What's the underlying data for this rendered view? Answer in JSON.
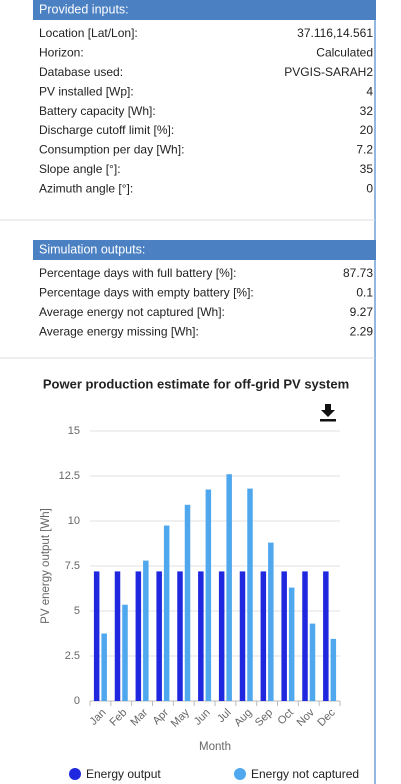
{
  "inputs": {
    "title": "Provided inputs:",
    "rows": [
      [
        "Location [Lat/Lon]:",
        "37.116,14.561"
      ],
      [
        "Horizon:",
        "Calculated"
      ],
      [
        "Database used:",
        "PVGIS-SARAH2"
      ],
      [
        "PV installed [Wp]:",
        "4"
      ],
      [
        "Battery capacity [Wh]:",
        "32"
      ],
      [
        "Discharge cutoff limit [%]:",
        "20"
      ],
      [
        "Consumption per day [Wh]:",
        "7.2"
      ],
      [
        "Slope angle [°]:",
        "35"
      ],
      [
        "Azimuth angle [°]:",
        "0"
      ]
    ]
  },
  "outputs": {
    "title": "Simulation outputs:",
    "rows": [
      [
        "Percentage days with full battery [%]:",
        "87.73"
      ],
      [
        "Percentage days with empty battery [%]:",
        "0.1"
      ],
      [
        "Average energy not captured [Wh]:",
        "9.27"
      ],
      [
        "Average energy missing [Wh]:",
        "2.29"
      ]
    ]
  },
  "chart_data": {
    "type": "bar",
    "title": "Power production estimate for off-grid PV system",
    "x_label": "Month",
    "y_label": "PV energy output [Wh]",
    "categories": [
      "Jan",
      "Feb",
      "Mar",
      "Apr",
      "May",
      "Jun",
      "Jul",
      "Aug",
      "Sep",
      "Oct",
      "Nov",
      "Dec"
    ],
    "series": [
      {
        "name": "Energy output",
        "color": "#1f28de",
        "values": [
          7.2,
          7.2,
          7.2,
          7.2,
          7.2,
          7.2,
          7.2,
          7.2,
          7.2,
          7.2,
          7.2,
          7.2
        ]
      },
      {
        "name": "Energy not captured",
        "color": "#4fa7ee",
        "values": [
          3.75,
          5.35,
          7.8,
          9.75,
          10.9,
          11.75,
          12.6,
          11.8,
          8.8,
          6.3,
          4.3,
          3.45
        ]
      }
    ],
    "ylim": [
      0,
      15
    ],
    "yticks": [
      0,
      2.5,
      5,
      7.5,
      10,
      12.5,
      15
    ],
    "grid": true,
    "legend": "bottom"
  }
}
